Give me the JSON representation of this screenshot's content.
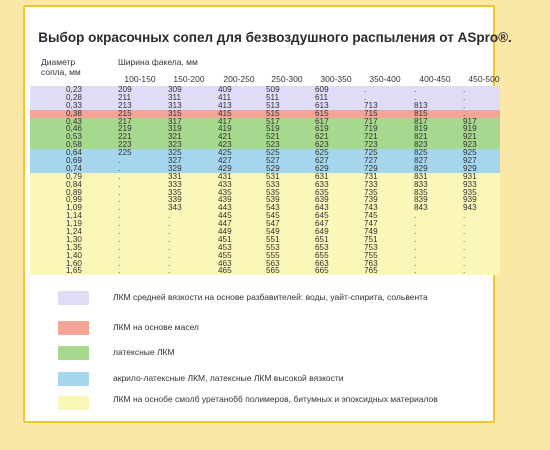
{
  "title": "Выбор окрасочных сопел для безвоздушного распыления от ASpro®.",
  "headers": {
    "diameter": "Диаметр сопла, мм",
    "width": "Ширина факела, мм"
  },
  "columns": [
    "100-150",
    "150-200",
    "200-250",
    "250-300",
    "300-350",
    "350-400",
    "400-450",
    "450-500"
  ],
  "colors": {
    "lavender": "#dedcf6",
    "salmon": "#f4a497",
    "green": "#a6d98d",
    "blue": "#a5d6ee",
    "yellow": "#fbf7b8"
  },
  "rows": [
    {
      "d": "0,23",
      "c": "lavender",
      "v": [
        "209",
        "309",
        "409",
        "509",
        "609",
        ".",
        ".",
        "."
      ]
    },
    {
      "d": "0,28",
      "c": "lavender",
      "v": [
        "211",
        "311",
        "411",
        "511",
        "611",
        ".",
        ".",
        "."
      ]
    },
    {
      "d": "0,33",
      "c": "lavender",
      "v": [
        "213",
        "313",
        "413",
        "513",
        "613",
        "713",
        "813",
        "."
      ]
    },
    {
      "d": "0,38",
      "c": "salmon",
      "v": [
        "215",
        "315",
        "415",
        "515",
        "615",
        "715",
        "815",
        "."
      ]
    },
    {
      "d": "0,43",
      "c": "green",
      "v": [
        "217",
        "317",
        "417",
        "517",
        "617",
        "717",
        "817",
        "917"
      ]
    },
    {
      "d": "0,46",
      "c": "green",
      "v": [
        "219",
        "319",
        "419",
        "519",
        "619",
        "719",
        "819",
        "919"
      ]
    },
    {
      "d": "0,53",
      "c": "green",
      "v": [
        "221",
        "321",
        "421",
        "521",
        "621",
        "721",
        "821",
        "921"
      ]
    },
    {
      "d": "0,58",
      "c": "green",
      "v": [
        "223",
        "323",
        "423",
        "523",
        "623",
        "723",
        "823",
        "923"
      ]
    },
    {
      "d": "0,64",
      "c": "blue",
      "v": [
        "225",
        "325",
        "425",
        "525",
        "625",
        "725",
        "825",
        "925"
      ]
    },
    {
      "d": "0,69",
      "c": "blue",
      "v": [
        ".",
        "327",
        "427",
        "527",
        "627",
        "727",
        "827",
        "927"
      ]
    },
    {
      "d": "0,74",
      "c": "blue",
      "v": [
        ".",
        "329",
        "429",
        "529",
        "629",
        "729",
        "829",
        "929"
      ]
    },
    {
      "d": "0,79",
      "c": "yellow",
      "v": [
        ".",
        "331",
        "431",
        "531",
        "631",
        "731",
        "831",
        "931"
      ]
    },
    {
      "d": "0,84",
      "c": "yellow",
      "v": [
        ".",
        "333",
        "433",
        "533",
        "633",
        "733",
        "833",
        "933"
      ]
    },
    {
      "d": "0,89",
      "c": "yellow",
      "v": [
        ".",
        "335",
        "435",
        "535",
        "635",
        "735",
        "835",
        "935"
      ]
    },
    {
      "d": "0,99",
      "c": "yellow",
      "v": [
        ".",
        "339",
        "439",
        "539",
        "639",
        "739",
        "839",
        "939"
      ]
    },
    {
      "d": "1,09",
      "c": "yellow",
      "v": [
        ".",
        "343",
        "443",
        "543",
        "643",
        "743",
        "843",
        "943"
      ]
    },
    {
      "d": "1,14",
      "c": "yellow",
      "v": [
        ".",
        ".",
        "445",
        "545",
        "645",
        "745",
        ".",
        "."
      ]
    },
    {
      "d": "1,19",
      "c": "yellow",
      "v": [
        ".",
        ".",
        "447",
        "547",
        "647",
        "747",
        ".",
        "."
      ]
    },
    {
      "d": "1,24",
      "c": "yellow",
      "v": [
        ".",
        ".",
        "449",
        "549",
        "649",
        "749",
        ".",
        "."
      ]
    },
    {
      "d": "1,30",
      "c": "yellow",
      "v": [
        ".",
        ".",
        "451",
        "551",
        "651",
        "751",
        ".",
        "."
      ]
    },
    {
      "d": "1,35",
      "c": "yellow",
      "v": [
        ".",
        ".",
        "453",
        "553",
        "653",
        "753",
        ".",
        "."
      ]
    },
    {
      "d": "1,40",
      "c": "yellow",
      "v": [
        ".",
        ".",
        "455",
        "555",
        "655",
        "755",
        ".",
        "."
      ]
    },
    {
      "d": "1,60",
      "c": "yellow",
      "v": [
        ".",
        ".",
        "463",
        "563",
        "663",
        "763",
        ".",
        "."
      ]
    },
    {
      "d": "1,65",
      "c": "yellow",
      "v": [
        ".",
        ".",
        "465",
        "565",
        "665",
        "765",
        ".",
        "."
      ]
    }
  ],
  "legend": [
    {
      "c": "lavender",
      "text": "ЛКМ средней вязкости на основе разбавителей: воды, уайт-спирита, сольвента"
    },
    {
      "c": "salmon",
      "text": "ЛКМ на основе масел"
    },
    {
      "c": "green",
      "text": "латексные ЛКМ"
    },
    {
      "c": "blue",
      "text": "акрило-латексные ЛКМ, латексные ЛКМ высокой вязкости"
    },
    {
      "c": "yellow",
      "text": "ЛКМ на оснобе смолб уретанобб полимеров, битумных и эпоксидных материалов"
    }
  ]
}
